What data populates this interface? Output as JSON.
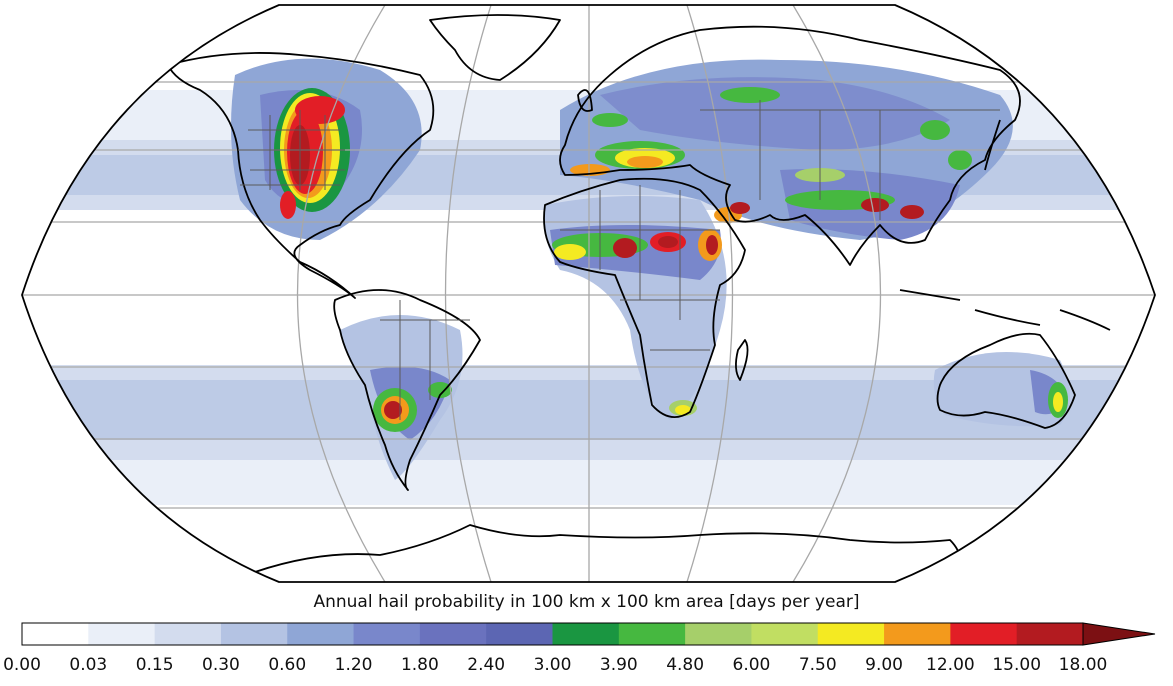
{
  "map": {
    "projection": "Robinson",
    "graticule": true,
    "coastlines": true,
    "country_borders": true,
    "us_state_borders": true,
    "hotspots": [
      {
        "region": "central-united-states",
        "level": "15.00-18.00"
      },
      {
        "region": "northern-italy-balkans",
        "level": "9.00-12.00"
      },
      {
        "region": "sahel-west-africa",
        "level": "12.00-18.00"
      },
      {
        "region": "ethiopian-highlands",
        "level": "12.00-15.00"
      },
      {
        "region": "arabian-peninsula-southwest",
        "level": "15.00-18.00"
      },
      {
        "region": "northern-india-bangladesh",
        "level": "12.00-15.00"
      },
      {
        "region": "southern-china",
        "level": "12.00-15.00"
      },
      {
        "region": "northern-argentina",
        "level": "12.00-15.00"
      },
      {
        "region": "south-africa-highveld",
        "level": "4.80-7.50"
      },
      {
        "region": "eastern-australia",
        "level": "4.80-7.50"
      }
    ]
  },
  "colorbar": {
    "title": "Annual hail probability in 100 km x 100 km area [days per year]",
    "ticks": [
      "0.00",
      "0.03",
      "0.15",
      "0.30",
      "0.60",
      "1.20",
      "1.80",
      "2.40",
      "3.00",
      "3.90",
      "4.80",
      "6.00",
      "7.50",
      "9.00",
      "12.00",
      "15.00",
      "18.00"
    ],
    "colors": [
      "#ffffff",
      "#eaeff8",
      "#d3dcee",
      "#b4c3e3",
      "#8fa6d6",
      "#7987cb",
      "#6a72be",
      "#5c66b3",
      "#1a9641",
      "#46b840",
      "#a6cf6a",
      "#c1de62",
      "#f4ea22",
      "#f39a1c",
      "#e21e26",
      "#b31b20"
    ],
    "extend_color": "#7c1013",
    "extend": "max"
  }
}
